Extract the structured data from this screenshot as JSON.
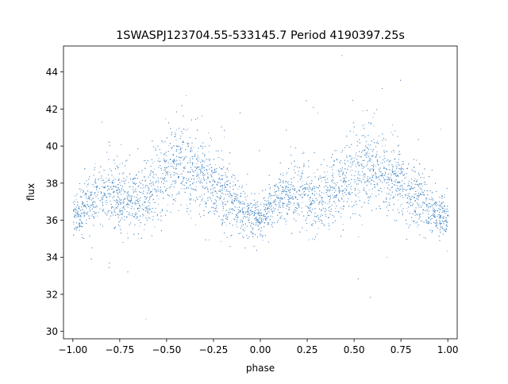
{
  "chart_data": {
    "type": "scatter",
    "title": "1SWASPJ123704.55-533145.7 Period 4190397.25s",
    "xlabel": "phase",
    "ylabel": "flux",
    "xlim": [
      -1.05,
      1.05
    ],
    "ylim": [
      29.6,
      45.4
    ],
    "xticks": [
      -1.0,
      -0.75,
      -0.5,
      -0.25,
      0.0,
      0.25,
      0.5,
      0.75,
      1.0
    ],
    "xtick_labels": [
      "−1.00",
      "−0.75",
      "−0.50",
      "−0.25",
      "0.00",
      "0.25",
      "0.50",
      "0.75",
      "1.00"
    ],
    "yticks": [
      30,
      32,
      34,
      36,
      38,
      40,
      42,
      44
    ],
    "ytick_labels": [
      "30",
      "32",
      "34",
      "36",
      "38",
      "40",
      "42",
      "44"
    ],
    "grid": false,
    "legend": "none",
    "marker_color": "#3f83bf",
    "series": [
      {
        "profile_x": [
          -1.0,
          -0.95,
          -0.9,
          -0.85,
          -0.8,
          -0.75,
          -0.7,
          -0.65,
          -0.6,
          -0.55,
          -0.5,
          -0.45,
          -0.4,
          -0.35,
          -0.3,
          -0.25,
          -0.2,
          -0.15,
          -0.1,
          -0.05,
          0.0,
          0.05,
          0.1,
          0.15,
          0.2,
          0.25,
          0.3,
          0.35,
          0.4,
          0.45,
          0.5,
          0.55,
          0.6,
          0.65,
          0.7,
          0.75,
          0.8,
          0.85,
          0.9,
          0.95,
          1.0
        ],
        "profile_y": [
          36.2,
          36.6,
          37.1,
          37.5,
          37.6,
          37.3,
          37.0,
          37.2,
          37.6,
          38.2,
          38.6,
          39.0,
          38.9,
          38.6,
          38.3,
          38.0,
          37.6,
          37.0,
          36.6,
          36.2,
          36.2,
          36.6,
          37.1,
          37.5,
          37.6,
          37.3,
          37.0,
          37.2,
          37.6,
          38.2,
          38.6,
          39.0,
          38.9,
          38.6,
          38.3,
          38.0,
          37.6,
          37.0,
          36.6,
          36.2,
          36.2
        ],
        "scatter_sigma": [
          0.5,
          0.7,
          0.7,
          0.8,
          0.9,
          0.9,
          0.9,
          0.9,
          0.9,
          1.0,
          1.1,
          1.2,
          1.2,
          1.1,
          1.0,
          0.9,
          0.9,
          0.8,
          0.7,
          0.6,
          0.5,
          0.7,
          0.7,
          0.8,
          0.9,
          0.9,
          0.9,
          0.9,
          0.9,
          1.0,
          1.1,
          1.2,
          1.2,
          1.1,
          1.0,
          0.9,
          0.9,
          0.8,
          0.7,
          0.6,
          0.5
        ]
      }
    ]
  }
}
